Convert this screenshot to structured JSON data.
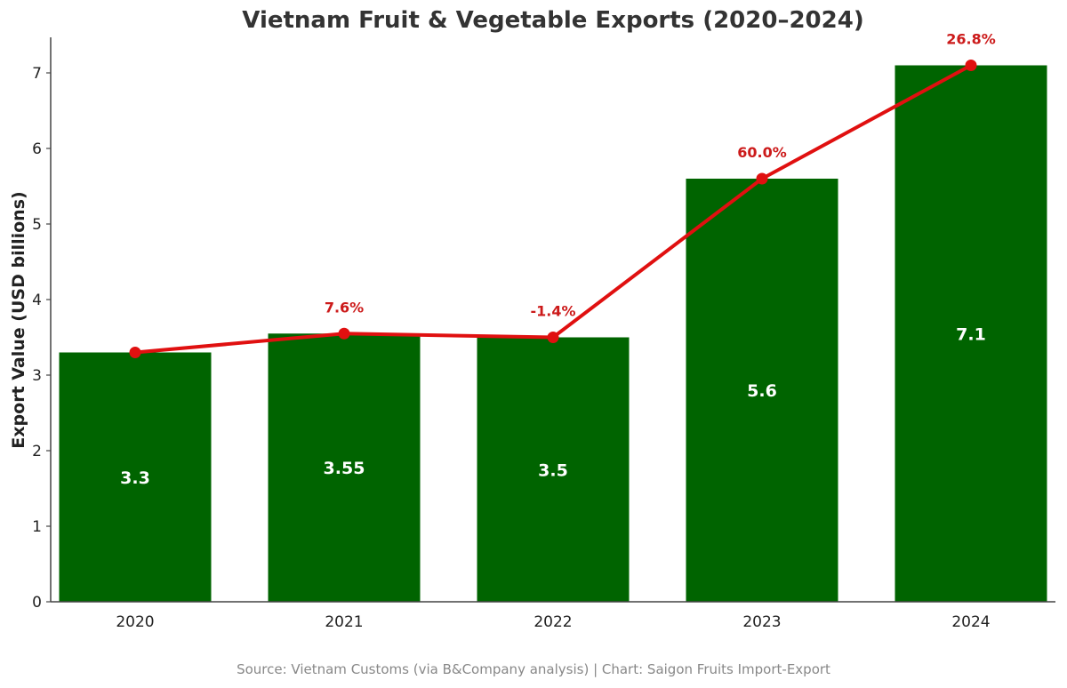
{
  "chart_data": {
    "type": "bar",
    "title": "Vietnam Fruit & Vegetable Exports (2020–2024)",
    "xlabel": "",
    "ylabel": "Export Value (USD billions)",
    "categories": [
      "2020",
      "2021",
      "2022",
      "2023",
      "2024"
    ],
    "values": [
      3.3,
      3.55,
      3.5,
      5.6,
      7.1
    ],
    "value_labels": [
      "3.3",
      "3.55",
      "3.5",
      "5.6",
      "7.1"
    ],
    "growth_line": {
      "type": "line",
      "values": [
        3.3,
        3.55,
        3.5,
        5.6,
        7.1
      ],
      "labels": [
        "",
        "7.6%",
        "-1.4%",
        "60.0%",
        "26.8%"
      ]
    },
    "yticks": [
      0,
      1,
      2,
      3,
      4,
      5,
      6,
      7
    ],
    "ylim": [
      0,
      7.45
    ],
    "grid": false,
    "legend": null,
    "colors": {
      "bar": "#006400",
      "line": "#e01010",
      "label": "#cc1a1a"
    }
  },
  "footer": {
    "source": "Source: Vietnam Customs (via B&Company analysis) | Chart: Saigon Fruits Import-Export"
  }
}
